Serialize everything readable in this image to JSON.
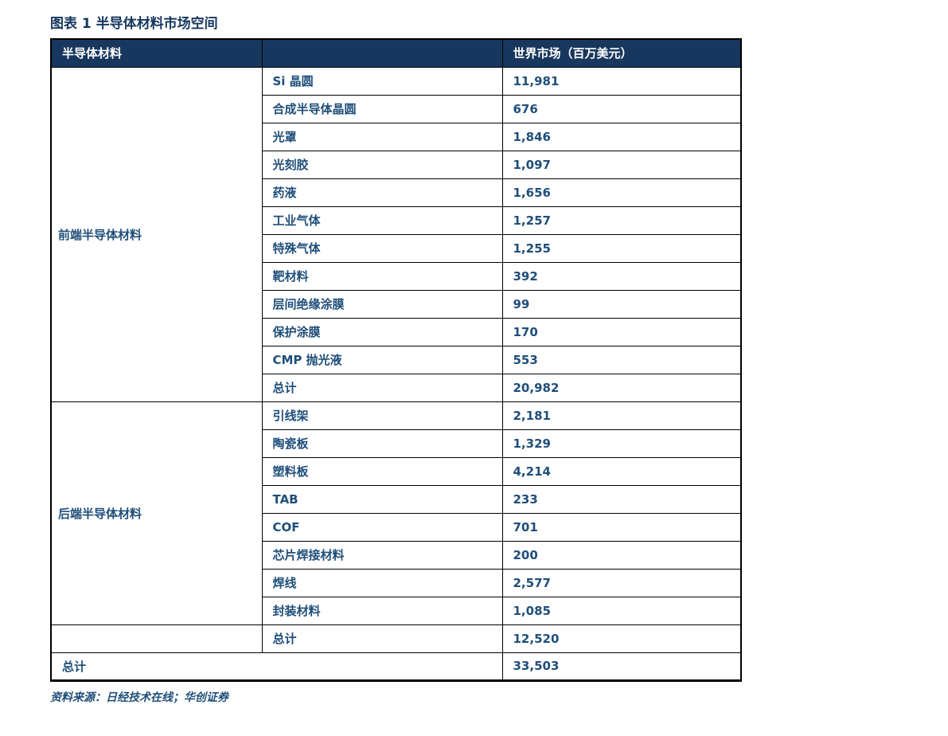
{
  "title": "图表 1 半导体材料市场空间",
  "colors": {
    "header_bg": "#17375E",
    "body_text": "#1F4E79",
    "title_text": "#17375E",
    "border": "#000000"
  },
  "table": {
    "header": {
      "material": "半导体材料",
      "middle": "",
      "market": "世界市场（百万美元）"
    },
    "groups": [
      {
        "label": "前端半导体材料",
        "rows": [
          {
            "name": "Si 晶圆",
            "value": "11,981"
          },
          {
            "name": "合成半导体晶圆",
            "value": "676"
          },
          {
            "name": "光罩",
            "value": "1,846"
          },
          {
            "name": "光刻胶",
            "value": "1,097"
          },
          {
            "name": "药液",
            "value": "1,656"
          },
          {
            "name": "工业气体",
            "value": "1,257"
          },
          {
            "name": "特殊气体",
            "value": "1,255"
          },
          {
            "name": "靶材料",
            "value": "392"
          },
          {
            "name": "层间绝缘涂膜",
            "value": "99"
          },
          {
            "name": "保护涂膜",
            "value": "170"
          },
          {
            "name": "CMP 抛光液",
            "value": "553"
          },
          {
            "name": "总计",
            "value": "20,982"
          }
        ]
      },
      {
        "label": "后端半导体材料",
        "rows": [
          {
            "name": "引线架",
            "value": "2,181"
          },
          {
            "name": "陶瓷板",
            "value": "1,329"
          },
          {
            "name": "塑料板",
            "value": "4,214"
          },
          {
            "name": "TAB",
            "value": "233"
          },
          {
            "name": "COF",
            "value": "701"
          },
          {
            "name": "芯片焊接材料",
            "value": "200"
          },
          {
            "name": "焊线",
            "value": "2,577"
          },
          {
            "name": "封装材料",
            "value": "1,085"
          }
        ]
      }
    ],
    "backend_total": {
      "label": "总计",
      "value": "12,520"
    },
    "grand_total": {
      "label": "总计",
      "value": "33,503"
    }
  },
  "source": "资料来源：日经技术在线；华创证券"
}
